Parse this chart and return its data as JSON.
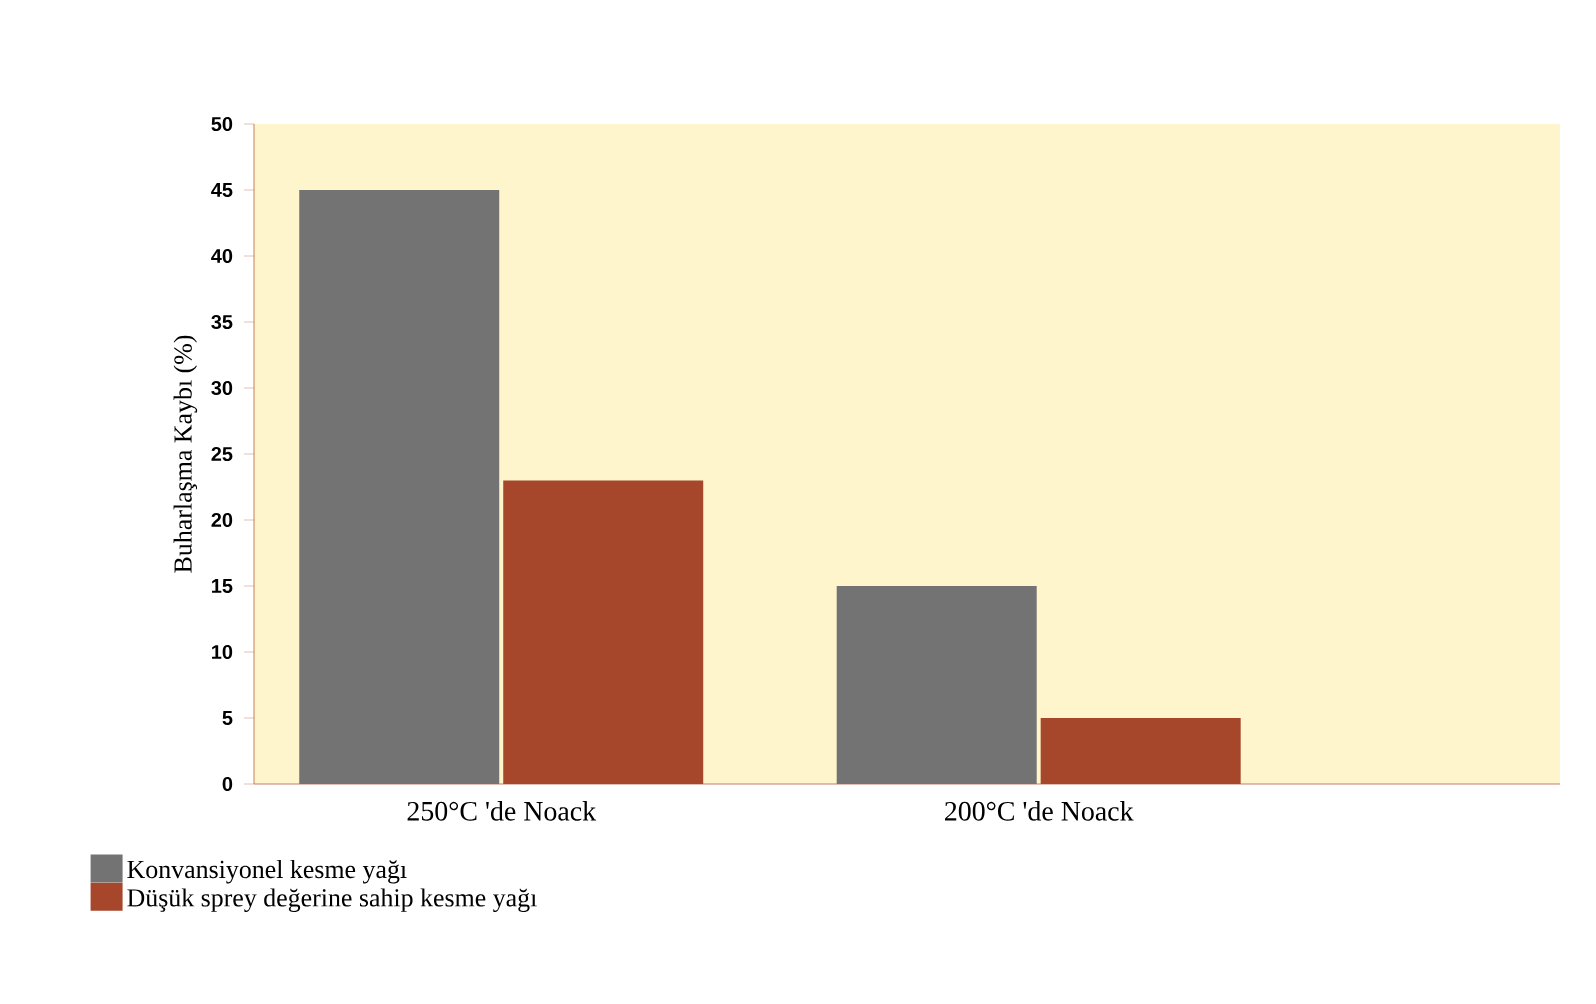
{
  "chart_data": {
    "type": "bar",
    "ylabel": "Buharlaşma Kaybı (%)",
    "categories": [
      "250°C 'de Noack",
      "200°C 'de Noack"
    ],
    "series": [
      {
        "name": "Konvansiyonel kesme yağı",
        "color": "#737373",
        "values": [
          45,
          15
        ]
      },
      {
        "name": "Düşük sprey değerine sahip kesme yağı",
        "color": "#a6462b",
        "values": [
          23,
          5
        ]
      }
    ],
    "ylim": [
      0,
      50
    ],
    "yticks": [
      0,
      5,
      10,
      15,
      20,
      25,
      30,
      35,
      40,
      45,
      50
    ],
    "grid": false,
    "legend": "bottom left"
  }
}
